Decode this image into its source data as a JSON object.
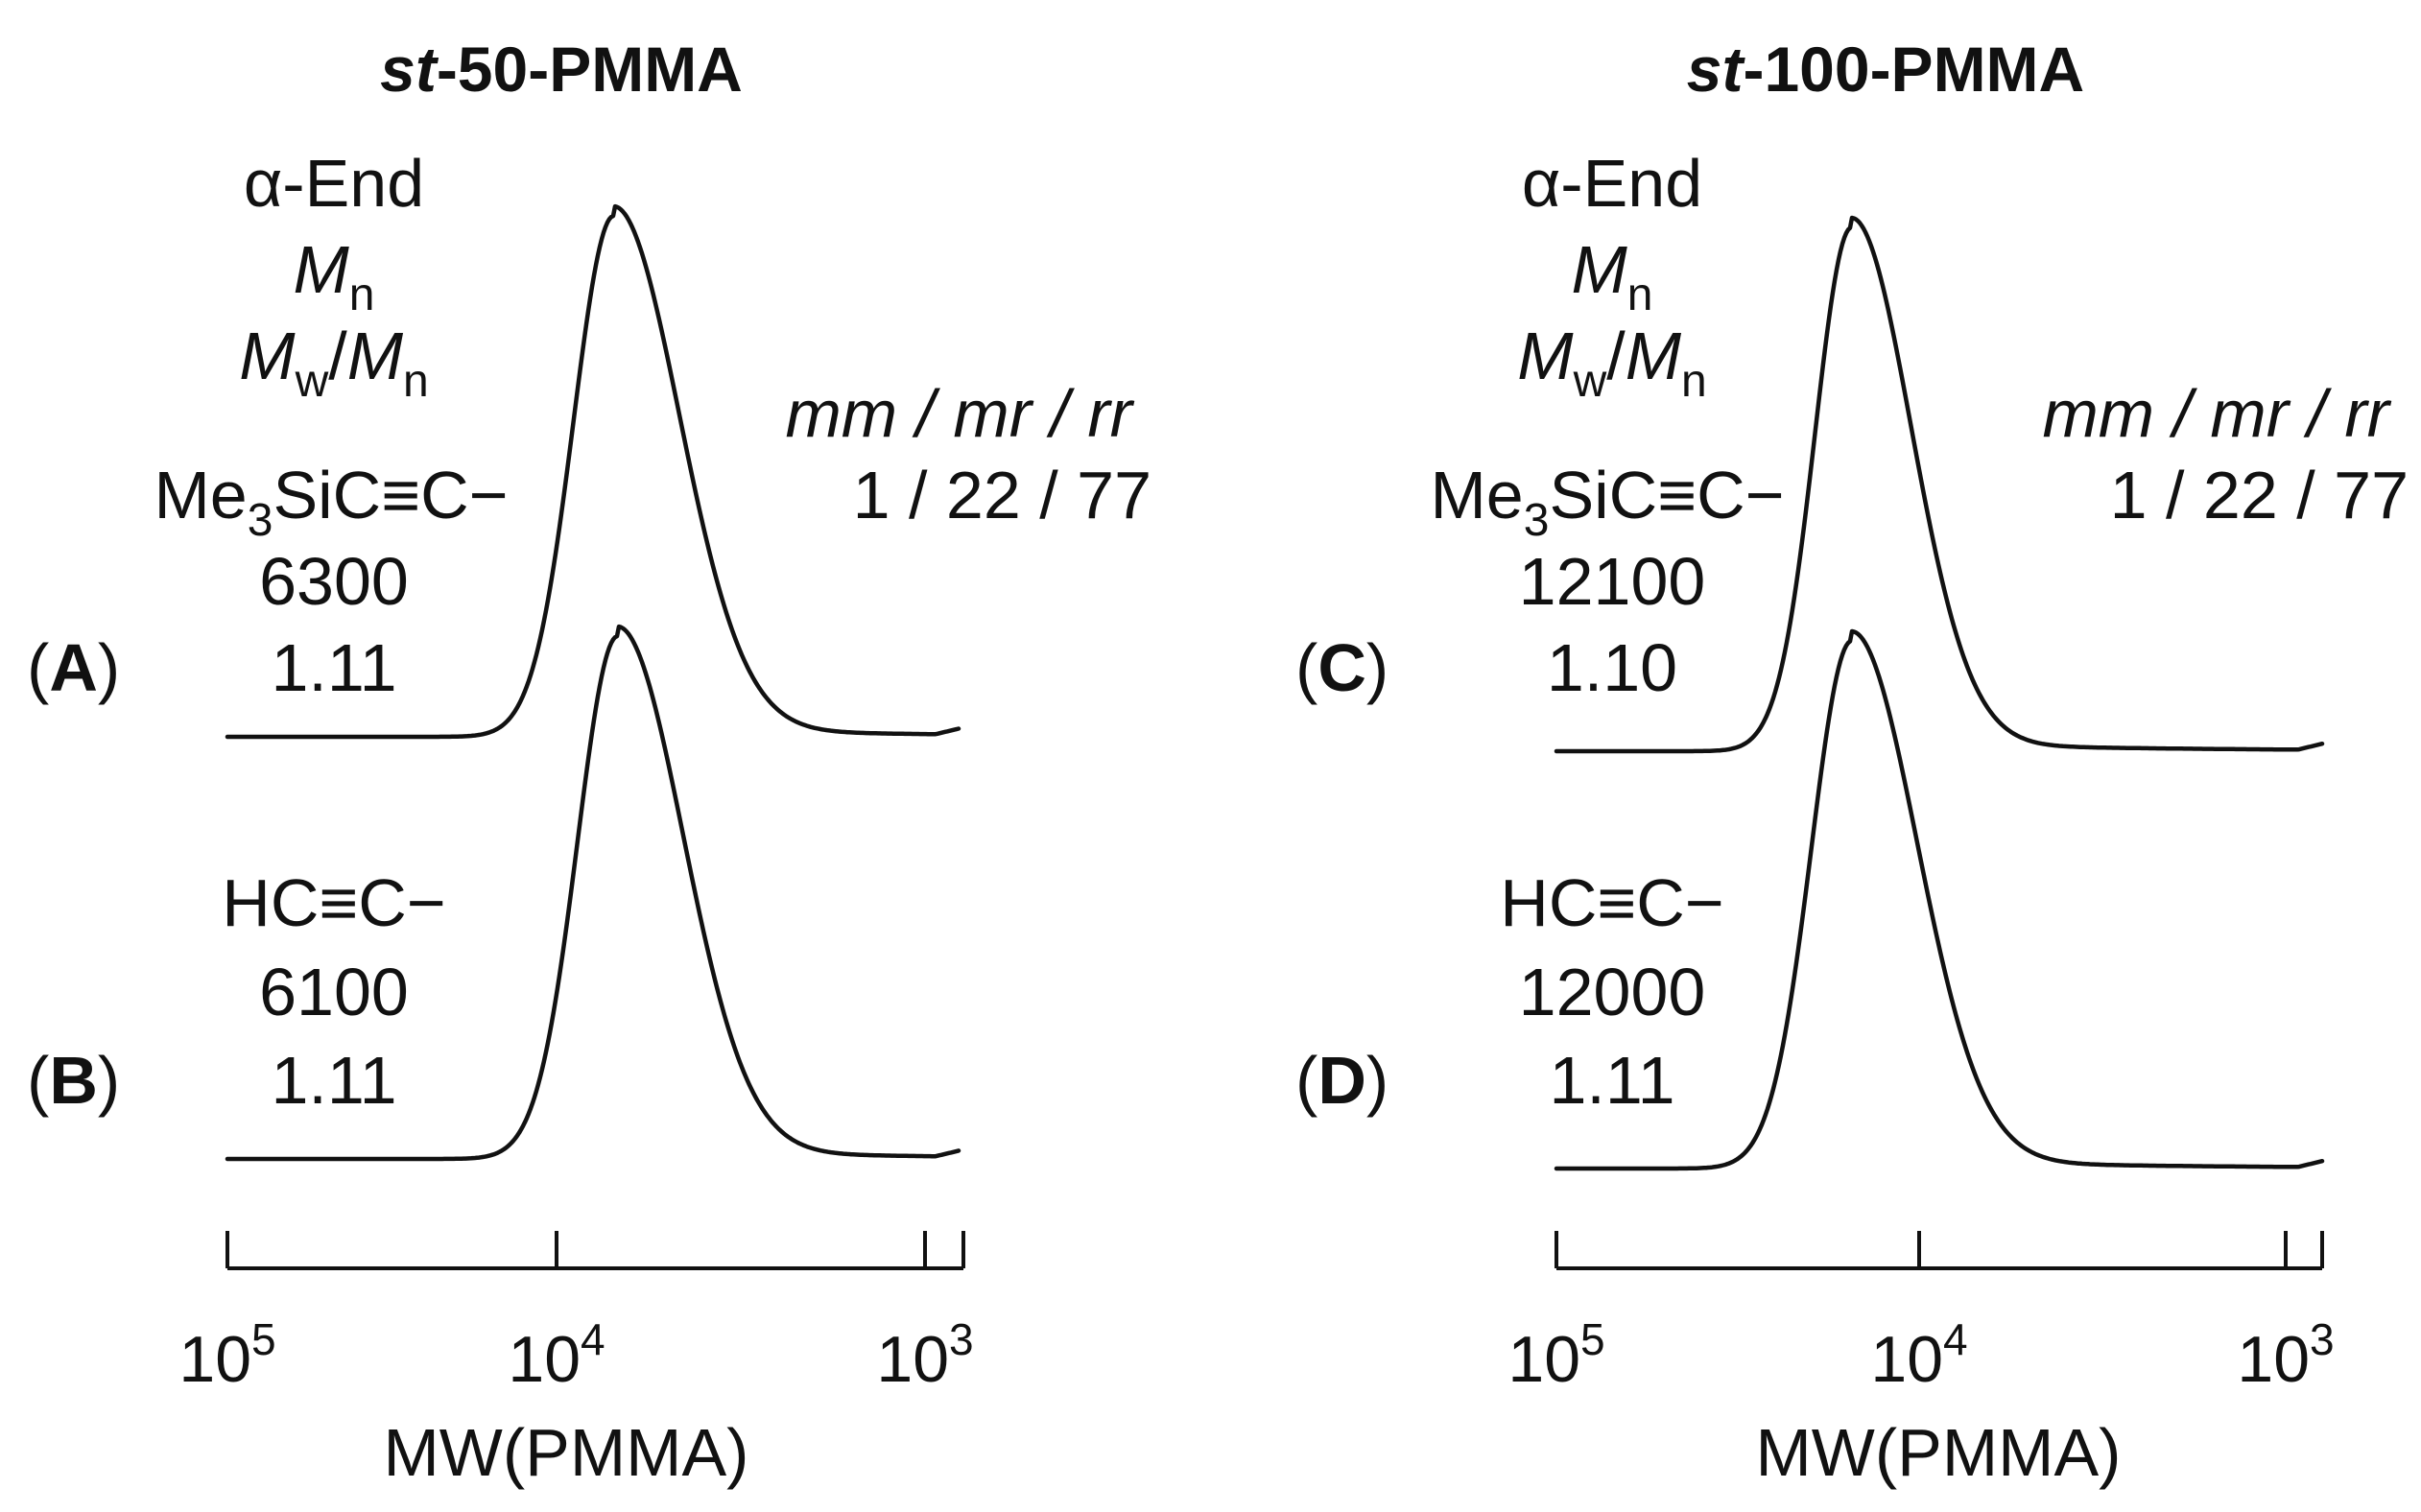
{
  "chart_data": [
    {
      "type": "line",
      "title": {
        "prefix": "st",
        "rest": "-50-PMMA"
      },
      "xlabel": "MW(PMMA)",
      "x_scale": "log",
      "x_direction": "decreasing",
      "x_ticks": [
        {
          "base": "10",
          "exp": "5",
          "value": 100000
        },
        {
          "base": "10",
          "exp": "4",
          "value": 10000
        },
        {
          "base": "10",
          "exp": "3",
          "value": 1000
        }
      ],
      "header": {
        "alpha_end": "α-End",
        "mn": {
          "main": "M",
          "sub": "n"
        },
        "mwmn": {
          "m1": "M",
          "s1": "w",
          "slash": "/",
          "m2": "M",
          "s2": "n"
        }
      },
      "tacticity": {
        "label": "mm / mr / rr",
        "values": "1  / 22 / 77"
      },
      "series": [
        {
          "name": "(A)",
          "letter": "A",
          "alpha_end": {
            "pre": "Me",
            "sub": "3",
            "post": "SiC≡C−"
          },
          "Mn": "6300",
          "PDI": "1.11",
          "peak_MW": 7800,
          "pdi_value": 1.11
        },
        {
          "name": "(B)",
          "letter": "B",
          "alpha_end": {
            "pre": "HC≡C−",
            "sub": "",
            "post": ""
          },
          "Mn": "6100",
          "PDI": "1.11",
          "peak_MW": 7600,
          "pdi_value": 1.11
        }
      ]
    },
    {
      "type": "line",
      "title": {
        "prefix": "st",
        "rest": "-100-PMMA"
      },
      "xlabel": "MW(PMMA)",
      "x_scale": "log",
      "x_direction": "decreasing",
      "x_ticks": [
        {
          "base": "10",
          "exp": "5",
          "value": 100000
        },
        {
          "base": "10",
          "exp": "4",
          "value": 10000
        },
        {
          "base": "10",
          "exp": "3",
          "value": 1000
        }
      ],
      "header": {
        "alpha_end": "α-End",
        "mn": {
          "main": "M",
          "sub": "n"
        },
        "mwmn": {
          "m1": "M",
          "s1": "w",
          "slash": "/",
          "m2": "M",
          "s2": "n"
        }
      },
      "tacticity": {
        "label": "mm / mr / rr",
        "values": "1  / 22 / 77"
      },
      "series": [
        {
          "name": "(C)",
          "letter": "C",
          "alpha_end": {
            "pre": "Me",
            "sub": "3",
            "post": "SiC≡C−"
          },
          "Mn": "12100",
          "PDI": "1.10",
          "peak_MW": 15500,
          "pdi_value": 1.1
        },
        {
          "name": "(D)",
          "letter": "D",
          "alpha_end": {
            "pre": "HC≡C−",
            "sub": "",
            "post": ""
          },
          "Mn": "12000",
          "PDI": "1.11",
          "peak_MW": 15500,
          "pdi_value": 1.11
        }
      ]
    }
  ]
}
